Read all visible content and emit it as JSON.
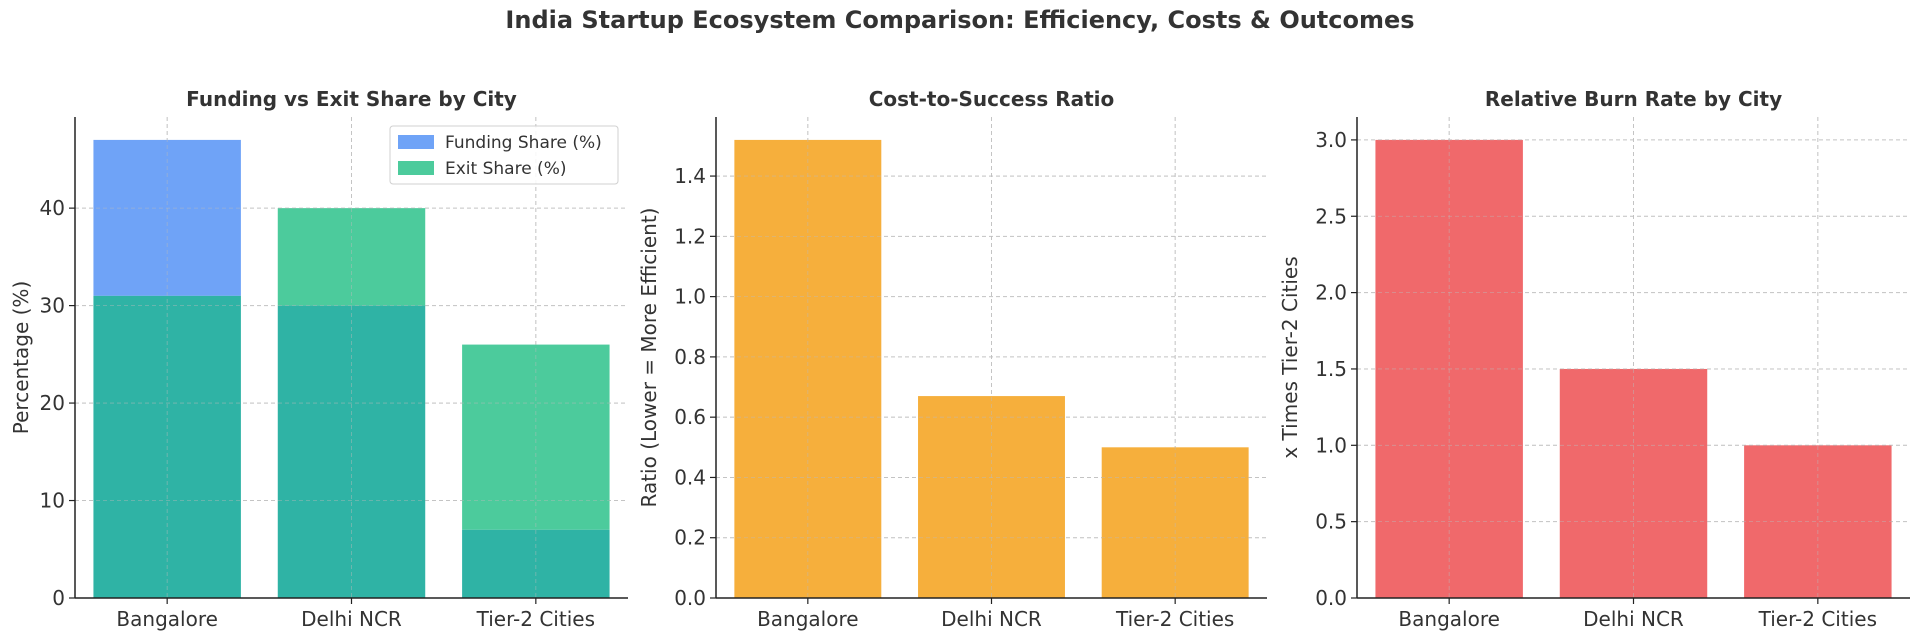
{
  "title": "India Startup Ecosystem Comparison: Efficiency, Costs & Outcomes",
  "chart_data": [
    {
      "type": "bar",
      "title": "Funding vs Exit Share by City",
      "xlabel": "",
      "ylabel": "Percentage (%)",
      "categories": [
        "Bangalore",
        "Delhi NCR",
        "Tier-2 Cities"
      ],
      "series": [
        {
          "name": "Funding Share (%)",
          "values": [
            47,
            30,
            7
          ],
          "color": "#6FA3F7"
        },
        {
          "name": "Exit Share (%)",
          "values": [
            31,
            40,
            26
          ],
          "color": "#4CCB9C"
        }
      ],
      "overlap_color": "#2FB3A5",
      "ylim": [
        0,
        49.35
      ],
      "yticks": [
        0,
        10,
        20,
        30,
        40
      ],
      "grid": true,
      "legend": "top-right"
    },
    {
      "type": "bar",
      "title": "Cost-to-Success Ratio",
      "xlabel": "",
      "ylabel": "Ratio (Lower = More Efficient)",
      "categories": [
        "Bangalore",
        "Delhi NCR",
        "Tier-2 Cities"
      ],
      "series": [
        {
          "name": "Cost-to-Success Ratio",
          "values": [
            1.52,
            0.67,
            0.5
          ],
          "color": "#F6AF3C"
        }
      ],
      "ylim": [
        0,
        1.596
      ],
      "yticks": [
        0.0,
        0.2,
        0.4,
        0.6,
        0.8,
        1.0,
        1.2,
        1.4
      ],
      "ytick_decimals": 1,
      "grid": true
    },
    {
      "type": "bar",
      "title": "Relative Burn Rate by City",
      "xlabel": "",
      "ylabel": "x Times Tier-2 Cities",
      "categories": [
        "Bangalore",
        "Delhi NCR",
        "Tier-2 Cities"
      ],
      "series": [
        {
          "name": "Relative Burn Rate",
          "values": [
            3.0,
            1.5,
            1.0
          ],
          "color": "#F0696B"
        }
      ],
      "ylim": [
        0,
        3.15
      ],
      "yticks": [
        0.0,
        0.5,
        1.0,
        1.5,
        2.0,
        2.5,
        3.0
      ],
      "ytick_decimals": 1,
      "grid": true
    }
  ]
}
